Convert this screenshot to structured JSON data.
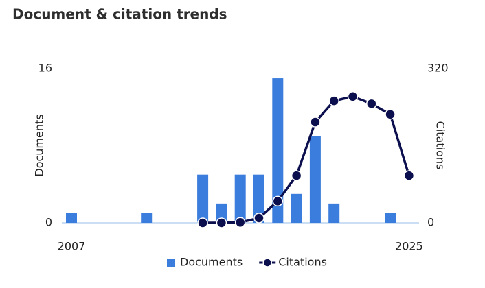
{
  "chart_data": {
    "type": "bar-line",
    "title": "Document & citation trends",
    "categories": [
      "2007",
      null,
      null,
      null,
      null,
      null,
      null,
      null,
      null,
      null,
      null,
      null,
      null,
      null,
      null,
      null,
      null,
      null,
      "2025"
    ],
    "ylabel": "Documents",
    "y2label": "Citations",
    "ylim": [
      0,
      16
    ],
    "yticks": [
      0,
      16
    ],
    "y2lim": [
      0,
      320
    ],
    "y2ticks": [
      0,
      320
    ],
    "series": [
      {
        "name": "Documents",
        "type": "bar",
        "color": "#3b7ddd",
        "values": [
          1,
          0,
          0,
          0,
          1,
          0,
          0,
          5,
          2,
          5,
          5,
          15,
          3,
          9,
          2,
          0,
          0,
          1,
          0
        ]
      },
      {
        "name": "Citations",
        "type": "line",
        "axis": "y2",
        "color": "#0c0f4e",
        "values": [
          null,
          null,
          null,
          null,
          null,
          null,
          null,
          0,
          0,
          1,
          10,
          45,
          98,
          209,
          253,
          262,
          247,
          225,
          98
        ]
      }
    ]
  }
}
